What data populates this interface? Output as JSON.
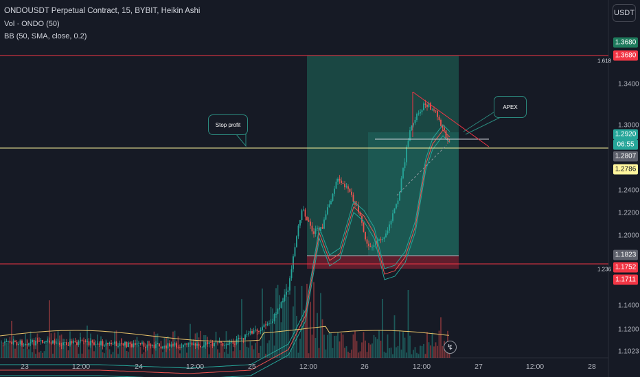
{
  "header": {
    "title": "ONDOUSDT Perpetual Contract, 15, BYBIT, Heikin Ashi",
    "vol_label": "Vol · ONDO (50)",
    "bb_label": "BB (50, SMA, close, 0.2)"
  },
  "currency_button": "USDT",
  "y_axis_ticks": [
    "1.3400",
    "1.3000",
    "1.2400",
    "1.2200",
    "1.2000",
    "1.1400",
    "1.1200",
    "1.1023"
  ],
  "x_axis_ticks": [
    "23",
    "12:00",
    "24",
    "12:00",
    "25",
    "12:00",
    "26",
    "12:00",
    "27",
    "12:00",
    "28"
  ],
  "price_labels": {
    "p1": "1.3680",
    "p2": "1.3680",
    "p3": "1.2920",
    "countdown": "06:55",
    "p4": "1.2807",
    "p5": "1.2786",
    "p6": "1.1823",
    "p7": "1.1752",
    "p8": "1.1711"
  },
  "fib_levels": {
    "upper": "1.618",
    "lower": "1.236"
  },
  "annotations": {
    "stop_profit": "Stop profit",
    "apex": "APEX"
  },
  "colors": {
    "background": "#161a25",
    "up": "#26a69a",
    "down": "#ef5350",
    "fib_line": "#f23645",
    "yellow_line": "#fff59d",
    "bb_line": "#e8c36a",
    "target_zone": "#1f6e5c",
    "stop_zone": "#7a2030"
  },
  "icons": {
    "clock": "clock-icon"
  },
  "chart_data": {
    "type": "candlestick",
    "symbol": "ONDOUSDT",
    "interval": "15",
    "exchange": "BYBIT",
    "style": "Heikin Ashi",
    "x_range": [
      "23",
      "28"
    ],
    "y_range": [
      1.1023,
      1.368
    ],
    "horizontal_levels": [
      {
        "price": 1.368,
        "label": "1.618",
        "color": "red"
      },
      {
        "price": 1.2786,
        "color": "yellow"
      },
      {
        "price": 1.1711,
        "label": "1.236",
        "color": "red"
      }
    ],
    "position": {
      "type": "long",
      "entry": 1.1823,
      "target": 1.368,
      "stop": 1.1711
    },
    "last_price": 1.292
  }
}
